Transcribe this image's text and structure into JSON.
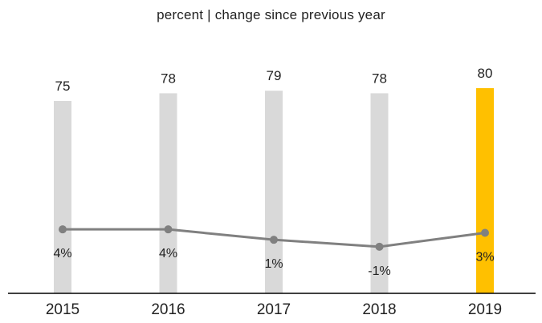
{
  "chart_data": {
    "type": "bar",
    "subtitle": "percent | change since previous year",
    "categories": [
      "2015",
      "2016",
      "2017",
      "2018",
      "2019"
    ],
    "series": [
      {
        "type": "bar",
        "values": [
          75,
          78,
          79,
          78,
          80
        ],
        "value_labels": [
          "75",
          "78",
          "79",
          "78",
          "80"
        ]
      },
      {
        "type": "line",
        "values": [
          4,
          4,
          1,
          -1,
          3
        ],
        "value_labels": [
          "4%",
          "4%",
          "1%",
          "-1%",
          "3%"
        ]
      }
    ],
    "colors": {
      "bar": "#d9d9d9",
      "highlight_bar": "#ffc000",
      "line": "#808080",
      "axis": "#000000"
    },
    "highlight_index": 4,
    "grid": false,
    "legend": "none"
  }
}
